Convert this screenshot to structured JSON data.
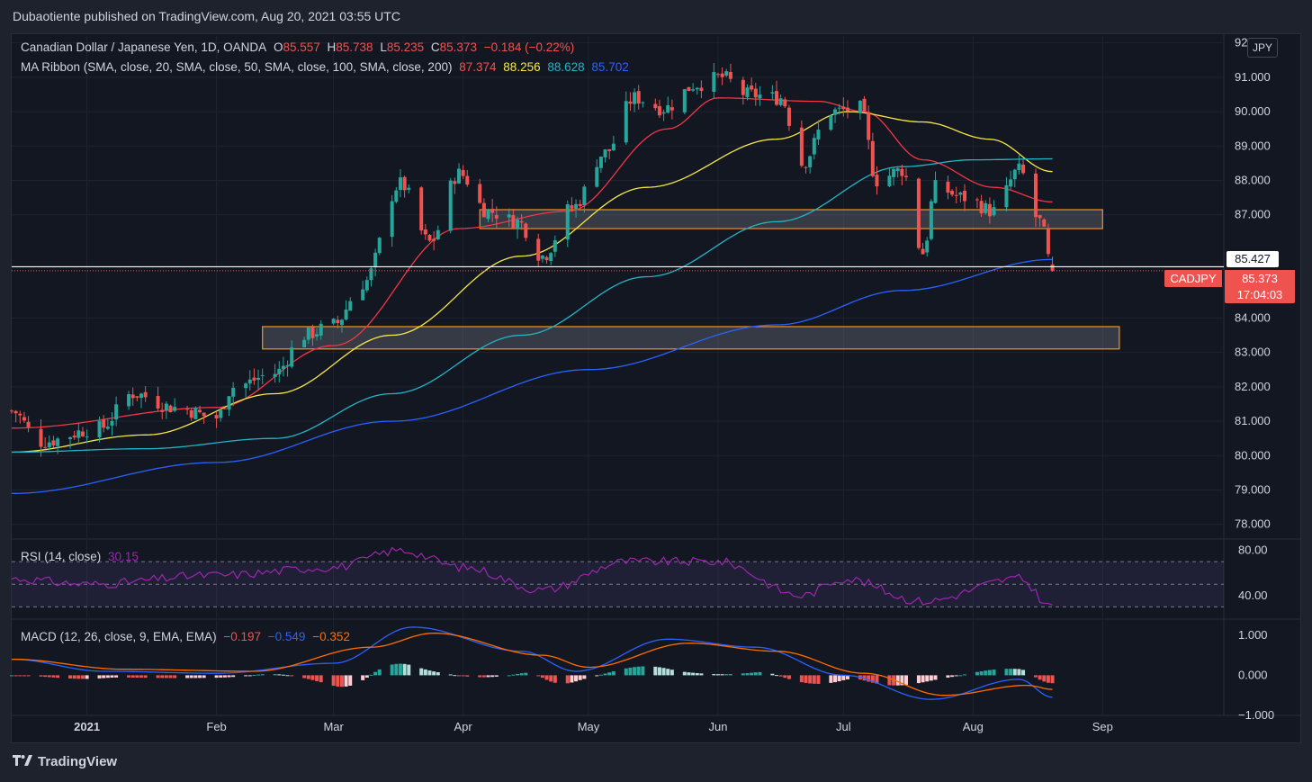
{
  "header": {
    "published_by": "Dubaotiente published on TradingView.com, Aug 20, 2021 03:55 UTC"
  },
  "legend": {
    "symbol": "Canadian Dollar / Japanese Yen, 1D, OANDA",
    "o_label": "O",
    "o": "85.557",
    "h_label": "H",
    "h": "85.738",
    "l_label": "L",
    "l": "85.235",
    "c_label": "C",
    "c": "85.373",
    "change": "−0.184 (−0.22%)",
    "ma_label": "MA Ribbon (SMA, close, 20, SMA, close, 50, SMA, close, 100, SMA, close, 200)",
    "ma20": "87.374",
    "ma50": "88.256",
    "ma100": "88.628",
    "ma200": "85.702",
    "rsi_label": "RSI (14, close)",
    "rsi": "30.15",
    "macd_label": "MACD (12, 26, close, 9, EMA, EMA)",
    "macd_hist": "−0.197",
    "macd_line": "−0.549",
    "macd_signal": "−0.352"
  },
  "price_scale": {
    "currency": "JPY",
    "ticks": [
      "92",
      "91.000",
      "90.000",
      "89.000",
      "88.000",
      "87.000",
      "84.000",
      "83.000",
      "82.000",
      "81.000",
      "80.000",
      "79.000",
      "78.000"
    ],
    "marker_price": "85.427",
    "last_symbol": "CADJPY",
    "last_price": "85.373",
    "countdown": "17:04:03",
    "rsi_ticks": [
      "80.00",
      "40.00"
    ],
    "macd_ticks": [
      "1.000",
      "0.000",
      "−1.000"
    ]
  },
  "time_axis": [
    "2021",
    "Feb",
    "Mar",
    "Apr",
    "May",
    "Jun",
    "Jul",
    "Aug",
    "Sep"
  ],
  "footer": {
    "brand": "TradingView"
  },
  "colors": {
    "up": "#26a69a",
    "down": "#ef5350",
    "ma20": "#f23645",
    "ma50": "#f7e744",
    "ma100": "#22b5c7",
    "ma200": "#2962ff",
    "rsi": "#9c27b0",
    "macd": "#2962ff",
    "signal": "#ff6d00",
    "zone": "#f7931a"
  },
  "chart_data": [
    {
      "type": "candlestick",
      "title": "Canadian Dollar / Japanese Yen, 1D, OANDA",
      "x_range": [
        "2020-12-14",
        "2021-09-30"
      ],
      "ylim": [
        77.6,
        92.2
      ],
      "zones": [
        {
          "from_date": "2021-04-05",
          "to_date": "2021-09-01",
          "low": 86.6,
          "high": 87.15
        },
        {
          "from_date": "2021-02-12",
          "to_date": "2021-09-05",
          "low": 83.1,
          "high": 83.75
        }
      ],
      "anchors": [
        {
          "date": "2020-12-14",
          "close": 81.3
        },
        {
          "date": "2020-12-21",
          "close": 80.4
        },
        {
          "date": "2021-01-04",
          "close": 80.8
        },
        {
          "date": "2021-01-12",
          "close": 81.8
        },
        {
          "date": "2021-01-22",
          "close": 81.4
        },
        {
          "date": "2021-02-01",
          "close": 81.1
        },
        {
          "date": "2021-02-05",
          "close": 82.0
        },
        {
          "date": "2021-02-15",
          "close": 82.4
        },
        {
          "date": "2021-02-22",
          "close": 83.5
        },
        {
          "date": "2021-03-01",
          "close": 83.8
        },
        {
          "date": "2021-03-08",
          "close": 85.0
        },
        {
          "date": "2021-03-17",
          "close": 87.9
        },
        {
          "date": "2021-03-24",
          "close": 86.2
        },
        {
          "date": "2021-03-31",
          "close": 88.2
        },
        {
          "date": "2021-04-07",
          "close": 87.1
        },
        {
          "date": "2021-04-14",
          "close": 86.8
        },
        {
          "date": "2021-04-20",
          "close": 85.8
        },
        {
          "date": "2021-04-27",
          "close": 87.2
        },
        {
          "date": "2021-05-05",
          "close": 88.8
        },
        {
          "date": "2021-05-12",
          "close": 90.4
        },
        {
          "date": "2021-05-19",
          "close": 90.1
        },
        {
          "date": "2021-05-27",
          "close": 90.8
        },
        {
          "date": "2021-06-02",
          "close": 91.0
        },
        {
          "date": "2021-06-08",
          "close": 90.5
        },
        {
          "date": "2021-06-16",
          "close": 90.4
        },
        {
          "date": "2021-06-21",
          "close": 88.5
        },
        {
          "date": "2021-06-28",
          "close": 90.0
        },
        {
          "date": "2021-07-05",
          "close": 90.1
        },
        {
          "date": "2021-07-09",
          "close": 88.0
        },
        {
          "date": "2021-07-15",
          "close": 88.3
        },
        {
          "date": "2021-07-20",
          "close": 85.9
        },
        {
          "date": "2021-07-23",
          "close": 87.8
        },
        {
          "date": "2021-07-30",
          "close": 87.5
        },
        {
          "date": "2021-08-06",
          "close": 87.1
        },
        {
          "date": "2021-08-12",
          "close": 88.3
        },
        {
          "date": "2021-08-17",
          "close": 86.8
        },
        {
          "date": "2021-08-20",
          "close": 85.373
        }
      ],
      "ma_series": [
        {
          "name": "SMA 20",
          "points": [
            [
              "2020-12-14",
              80.8
            ],
            [
              "2021-02-01",
              81.4
            ],
            [
              "2021-03-01",
              83.2
            ],
            [
              "2021-03-31",
              86.6
            ],
            [
              "2021-04-26",
              87.1
            ],
            [
              "2021-05-20",
              89.5
            ],
            [
              "2021-06-01",
              90.4
            ],
            [
              "2021-06-25",
              90.3
            ],
            [
              "2021-07-06",
              90.0
            ],
            [
              "2021-07-20",
              88.6
            ],
            [
              "2021-08-06",
              87.8
            ],
            [
              "2021-08-20",
              87.374
            ]
          ]
        },
        {
          "name": "SMA 50",
          "points": [
            [
              "2020-12-14",
              80.1
            ],
            [
              "2021-01-15",
              80.6
            ],
            [
              "2021-02-15",
              81.8
            ],
            [
              "2021-03-15",
              83.5
            ],
            [
              "2021-04-15",
              85.8
            ],
            [
              "2021-05-15",
              87.8
            ],
            [
              "2021-06-15",
              89.2
            ],
            [
              "2021-07-02",
              90.0
            ],
            [
              "2021-07-20",
              89.7
            ],
            [
              "2021-08-05",
              89.2
            ],
            [
              "2021-08-20",
              88.256
            ]
          ]
        },
        {
          "name": "SMA 100",
          "points": [
            [
              "2020-12-14",
              80.1
            ],
            [
              "2021-01-15",
              80.2
            ],
            [
              "2021-02-15",
              80.5
            ],
            [
              "2021-03-15",
              81.8
            ],
            [
              "2021-04-15",
              83.5
            ],
            [
              "2021-05-15",
              85.2
            ],
            [
              "2021-06-15",
              86.8
            ],
            [
              "2021-07-15",
              88.4
            ],
            [
              "2021-08-01",
              88.6
            ],
            [
              "2021-08-20",
              88.628
            ]
          ]
        },
        {
          "name": "SMA 200",
          "points": [
            [
              "2020-12-14",
              78.9
            ],
            [
              "2021-02-01",
              79.8
            ],
            [
              "2021-03-15",
              81.0
            ],
            [
              "2021-05-01",
              82.5
            ],
            [
              "2021-06-15",
              83.8
            ],
            [
              "2021-07-15",
              84.8
            ],
            [
              "2021-08-20",
              85.702
            ]
          ]
        }
      ]
    },
    {
      "type": "line",
      "title": "RSI (14, close)",
      "ylim": [
        20,
        90
      ],
      "bands": [
        70,
        50,
        30
      ],
      "series": [
        {
          "name": "RSI",
          "points": [
            [
              "2020-12-14",
              55
            ],
            [
              "2021-01-01",
              50
            ],
            [
              "2021-02-01",
              58
            ],
            [
              "2021-03-01",
              65
            ],
            [
              "2021-03-17",
              80
            ],
            [
              "2021-04-01",
              65
            ],
            [
              "2021-04-20",
              45
            ],
            [
              "2021-05-10",
              70
            ],
            [
              "2021-06-01",
              70
            ],
            [
              "2021-06-21",
              40
            ],
            [
              "2021-07-01",
              55
            ],
            [
              "2021-07-20",
              35
            ],
            [
              "2021-08-12",
              55
            ],
            [
              "2021-08-20",
              30.15
            ]
          ]
        }
      ]
    },
    {
      "type": "line",
      "title": "MACD (12, 26, close, 9, EMA, EMA)",
      "ylim": [
        -1.0,
        1.4
      ],
      "series": [
        {
          "name": "MACD",
          "points": [
            [
              "2020-12-14",
              0.4
            ],
            [
              "2021-01-05",
              0.1
            ],
            [
              "2021-02-01",
              0.05
            ],
            [
              "2021-03-01",
              0.3
            ],
            [
              "2021-03-20",
              1.2
            ],
            [
              "2021-04-15",
              0.6
            ],
            [
              "2021-04-28",
              0.1
            ],
            [
              "2021-05-20",
              0.9
            ],
            [
              "2021-06-10",
              0.7
            ],
            [
              "2021-07-01",
              0.0
            ],
            [
              "2021-07-22",
              -0.6
            ],
            [
              "2021-08-12",
              -0.1
            ],
            [
              "2021-08-20",
              -0.549
            ]
          ]
        },
        {
          "name": "Signal",
          "points": [
            [
              "2020-12-14",
              0.4
            ],
            [
              "2021-01-10",
              0.15
            ],
            [
              "2021-02-10",
              0.1
            ],
            [
              "2021-03-10",
              0.7
            ],
            [
              "2021-03-25",
              1.05
            ],
            [
              "2021-04-20",
              0.5
            ],
            [
              "2021-05-01",
              0.2
            ],
            [
              "2021-05-25",
              0.8
            ],
            [
              "2021-06-15",
              0.6
            ],
            [
              "2021-07-06",
              0.05
            ],
            [
              "2021-07-25",
              -0.5
            ],
            [
              "2021-08-14",
              -0.25
            ],
            [
              "2021-08-20",
              -0.352
            ]
          ]
        }
      ]
    }
  ]
}
